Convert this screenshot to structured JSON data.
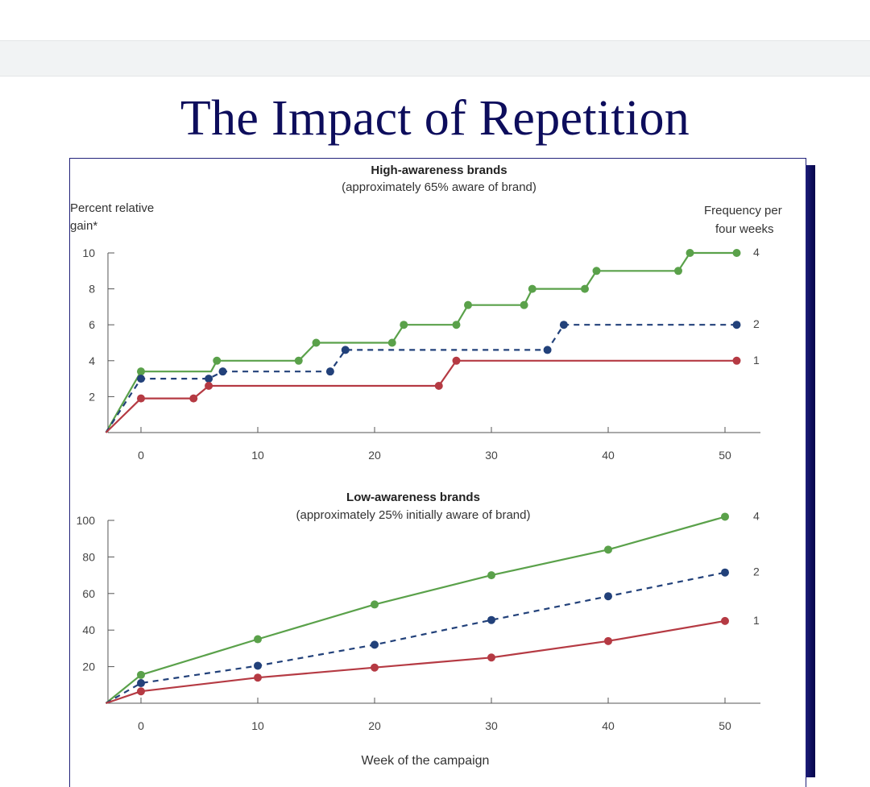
{
  "slide": {
    "title": "The Impact of Repetition"
  },
  "axis_labels": {
    "y": [
      "Percent relative",
      "gain*"
    ],
    "frequency": [
      "Frequency per",
      "four weeks"
    ],
    "x": "Week of the campaign"
  },
  "chart_data": [
    {
      "type": "line",
      "title": "High-awareness brands",
      "subtitle": "(approximately 65% aware of brand)",
      "xlabel": "Week of the campaign",
      "ylabel": "Percent relative gain*",
      "xlim": [
        -3,
        53
      ],
      "ylim": [
        0,
        10
      ],
      "xticks": [
        0,
        10,
        20,
        30,
        40,
        50
      ],
      "yticks": [
        2,
        4,
        6,
        8,
        10
      ],
      "legend_title": "Frequency per four weeks",
      "series": [
        {
          "name": "4",
          "style": "solid",
          "color": "#5aa14a",
          "x": [
            -3,
            0,
            6,
            6.5,
            13.5,
            15,
            21.5,
            22.5,
            27,
            28,
            32.8,
            33.5,
            38,
            39,
            46,
            47,
            51
          ],
          "y": [
            0,
            3.4,
            3.4,
            4.0,
            4.0,
            5.0,
            5.0,
            6.0,
            6.0,
            7.1,
            7.1,
            8.0,
            8.0,
            9.0,
            9.0,
            10.0,
            10.0
          ],
          "markers": [
            [
              0,
              3.4
            ],
            [
              6.5,
              4.0
            ],
            [
              13.5,
              4.0
            ],
            [
              15,
              5.0
            ],
            [
              21.5,
              5.0
            ],
            [
              22.5,
              6.0
            ],
            [
              27,
              6.0
            ],
            [
              28,
              7.1
            ],
            [
              32.8,
              7.1
            ],
            [
              33.5,
              8.0
            ],
            [
              38,
              8.0
            ],
            [
              39,
              9.0
            ],
            [
              46,
              9.0
            ],
            [
              47,
              10.0
            ],
            [
              51,
              10.0
            ]
          ]
        },
        {
          "name": "2",
          "style": "dashed",
          "color": "#22417a",
          "x": [
            -3,
            0,
            5.8,
            7,
            16.2,
            17.5,
            34.8,
            36.2,
            51
          ],
          "y": [
            0,
            3.0,
            3.0,
            3.4,
            3.4,
            4.6,
            4.6,
            6.0,
            6.0
          ],
          "markers": [
            [
              0,
              3.0
            ],
            [
              5.8,
              3.0
            ],
            [
              7,
              3.4
            ],
            [
              16.2,
              3.4
            ],
            [
              17.5,
              4.6
            ],
            [
              34.8,
              4.6
            ],
            [
              36.2,
              6.0
            ],
            [
              51,
              6.0
            ]
          ]
        },
        {
          "name": "1",
          "style": "solid",
          "color": "#b53a43",
          "x": [
            -3,
            0,
            4.5,
            5.8,
            25.5,
            27,
            51
          ],
          "y": [
            0,
            1.9,
            1.9,
            2.6,
            2.6,
            4.0,
            4.0
          ],
          "markers": [
            [
              0,
              1.9
            ],
            [
              4.5,
              1.9
            ],
            [
              5.8,
              2.6
            ],
            [
              25.5,
              2.6
            ],
            [
              27,
              4.0
            ],
            [
              51,
              4.0
            ]
          ]
        }
      ]
    },
    {
      "type": "line",
      "title": "Low-awareness brands",
      "subtitle": "(approximately 25% initially aware of brand)",
      "xlabel": "Week of the campaign",
      "ylabel": "Percent relative gain*",
      "xlim": [
        -3,
        53
      ],
      "ylim": [
        0,
        100
      ],
      "xticks": [
        0,
        10,
        20,
        30,
        40,
        50
      ],
      "yticks": [
        20,
        40,
        60,
        80,
        100
      ],
      "legend_title": "Frequency per four weeks",
      "series": [
        {
          "name": "4",
          "style": "solid",
          "color": "#5aa14a",
          "x": [
            -3,
            0,
            10,
            20,
            30,
            40,
            50
          ],
          "y": [
            0,
            15.5,
            35,
            54,
            70,
            84,
            102
          ],
          "markers": [
            [
              0,
              15.5
            ],
            [
              10,
              35
            ],
            [
              20,
              54
            ],
            [
              30,
              70
            ],
            [
              40,
              84
            ],
            [
              50,
              102
            ]
          ]
        },
        {
          "name": "2",
          "style": "dashed",
          "color": "#22417a",
          "x": [
            -3,
            0,
            10,
            20,
            30,
            40,
            50
          ],
          "y": [
            0,
            11,
            20.5,
            32,
            45.5,
            58.5,
            71.5
          ],
          "markers": [
            [
              0,
              11
            ],
            [
              10,
              20.5
            ],
            [
              20,
              32
            ],
            [
              30,
              45.5
            ],
            [
              40,
              58.5
            ],
            [
              50,
              71.5
            ]
          ]
        },
        {
          "name": "1",
          "style": "solid",
          "color": "#b53a43",
          "x": [
            -3,
            0,
            10,
            20,
            30,
            40,
            50
          ],
          "y": [
            0,
            6.5,
            14,
            19.5,
            25,
            34,
            45
          ],
          "markers": [
            [
              0,
              6.5
            ],
            [
              10,
              14
            ],
            [
              20,
              19.5
            ],
            [
              30,
              25
            ],
            [
              40,
              34
            ],
            [
              50,
              45
            ]
          ]
        }
      ]
    }
  ]
}
